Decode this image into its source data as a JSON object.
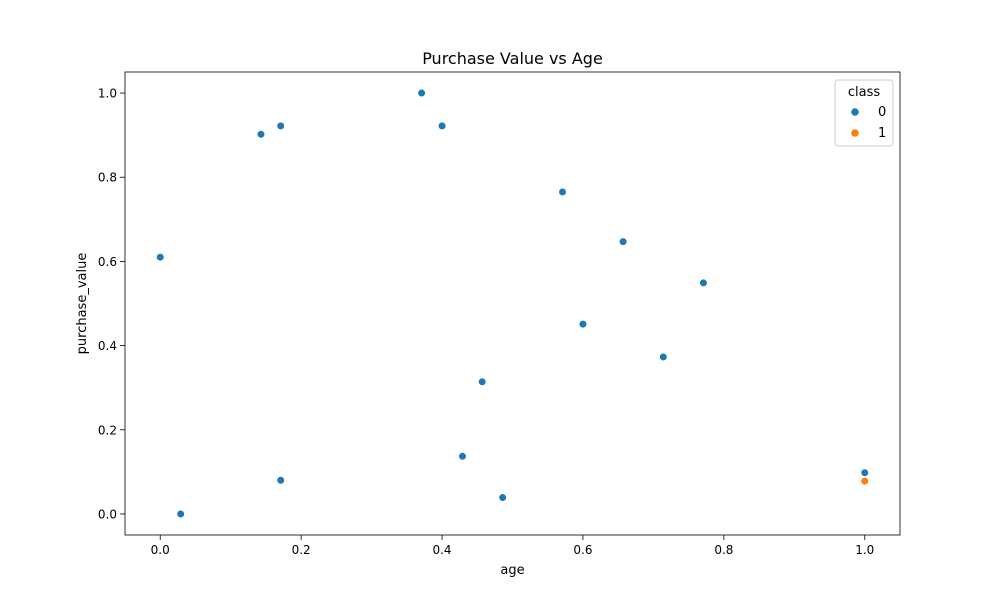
{
  "chart_data": {
    "type": "scatter",
    "title": "Purchase Value vs Age",
    "xlabel": "age",
    "ylabel": "purchase_value",
    "xlim": [
      -0.05,
      1.05
    ],
    "ylim": [
      -0.05,
      1.05
    ],
    "xticks": [
      0.0,
      0.2,
      0.4,
      0.6,
      0.8,
      1.0
    ],
    "xtick_labels": [
      "0.0",
      "0.2",
      "0.4",
      "0.6",
      "0.8",
      "1.0"
    ],
    "yticks": [
      0.0,
      0.2,
      0.4,
      0.6,
      0.8,
      1.0
    ],
    "ytick_labels": [
      "0.0",
      "0.2",
      "0.4",
      "0.6",
      "0.8",
      "1.0"
    ],
    "grid": false,
    "legend": {
      "title": "class",
      "placement": "top-right"
    },
    "series": [
      {
        "name": "0",
        "color": "#1f77b4",
        "points": [
          {
            "x": 0.0,
            "y": 0.61
          },
          {
            "x": 0.029,
            "y": 0.0
          },
          {
            "x": 0.143,
            "y": 0.902
          },
          {
            "x": 0.171,
            "y": 0.922
          },
          {
            "x": 0.171,
            "y": 0.08
          },
          {
            "x": 0.371,
            "y": 1.0
          },
          {
            "x": 0.4,
            "y": 0.922
          },
          {
            "x": 0.429,
            "y": 0.137
          },
          {
            "x": 0.457,
            "y": 0.314
          },
          {
            "x": 0.486,
            "y": 0.039
          },
          {
            "x": 0.571,
            "y": 0.765
          },
          {
            "x": 0.6,
            "y": 0.451
          },
          {
            "x": 0.657,
            "y": 0.647
          },
          {
            "x": 0.714,
            "y": 0.373
          },
          {
            "x": 0.771,
            "y": 0.549
          },
          {
            "x": 1.0,
            "y": 0.098
          }
        ]
      },
      {
        "name": "1",
        "color": "#ff7f0e",
        "points": [
          {
            "x": 1.0,
            "y": 0.078
          }
        ]
      }
    ]
  }
}
